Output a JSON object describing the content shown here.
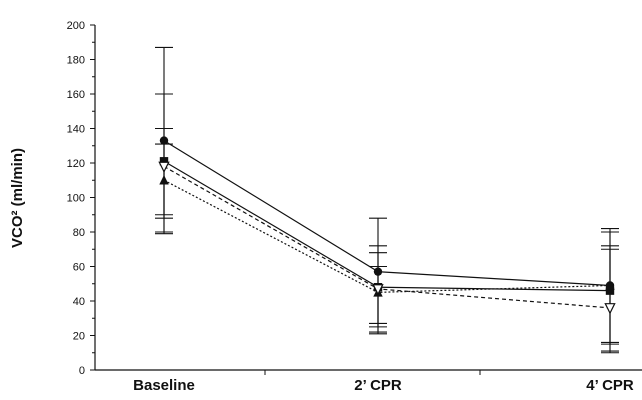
{
  "chart_data": {
    "type": "line",
    "title": "",
    "xlabel": "",
    "ylabel": "VCO² (ml/min)",
    "categories": [
      "Baseline",
      "2’ CPR",
      "4’ CPR"
    ],
    "ylim": [
      0,
      200
    ],
    "yticks": [
      0,
      20,
      40,
      60,
      80,
      100,
      120,
      140,
      160,
      180,
      200
    ],
    "grid": false,
    "legend": "none",
    "series": [
      {
        "marker": "circle",
        "line_style": "solid",
        "color": "#111111",
        "values": [
          133,
          57,
          49
        ],
        "error": [
          [
            80,
            187
          ],
          [
            25,
            88
          ],
          [
            15,
            82
          ]
        ]
      },
      {
        "marker": "square",
        "line_style": "solid",
        "color": "#111111",
        "values": [
          121,
          48,
          46
        ],
        "error": [
          [
            88,
            160
          ],
          [
            22,
            72
          ],
          [
            10,
            70
          ]
        ]
      },
      {
        "marker": "triangle-up",
        "line_style": "dotted",
        "color": "#111111",
        "values": [
          110,
          45,
          49
        ],
        "error": [
          [
            79,
            140
          ],
          [
            21,
            68
          ],
          [
            16,
            80
          ]
        ]
      },
      {
        "marker": "triangle-down",
        "line_style": "dashed",
        "color": "#111111",
        "values": [
          118,
          47,
          36
        ],
        "error": [
          [
            90,
            131
          ],
          [
            27,
            60
          ],
          [
            11,
            72
          ]
        ]
      }
    ]
  }
}
